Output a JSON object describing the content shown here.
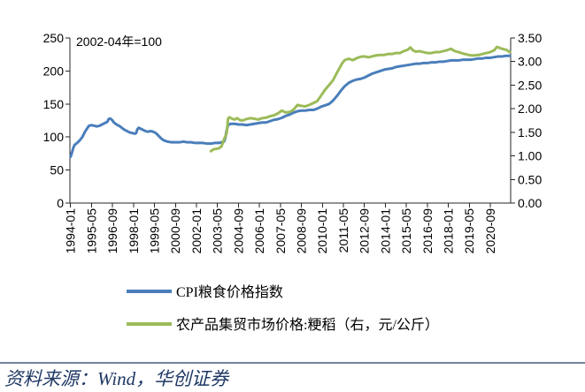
{
  "chart_data": {
    "type": "line",
    "annotation": "2002-04年=100",
    "grid": false,
    "legend_position": "bottom",
    "x_range": [
      "1994-01",
      "2021-12"
    ],
    "x_tick_labels": [
      "1994-01",
      "1995-05",
      "1996-09",
      "1998-01",
      "1999-05",
      "2000-09",
      "2002-01",
      "2003-05",
      "2004-09",
      "2006-01",
      "2007-05",
      "2008-09",
      "2010-01",
      "2011-05",
      "2012-09",
      "2014-01",
      "2015-05",
      "2016-09",
      "2018-01",
      "2019-05",
      "2020-09"
    ],
    "y_left": {
      "range": [
        0,
        250
      ],
      "tick_labels": [
        "0",
        "50",
        "100",
        "150",
        "200",
        "250"
      ]
    },
    "y_right": {
      "range": [
        0,
        3.5
      ],
      "tick_labels": [
        "0.00",
        "0.50",
        "1.00",
        "1.50",
        "2.00",
        "2.50",
        "3.00",
        "3.50"
      ]
    },
    "series": [
      {
        "name": "CPI粮食价格指数",
        "axis": "left",
        "color": "#4a7ebb",
        "x": [
          "1994-01",
          "1994-02",
          "1994-03",
          "1994-04",
          "1994-06",
          "1994-08",
          "1994-10",
          "1994-12",
          "1995-02",
          "1995-03",
          "1995-05",
          "1995-07",
          "1995-09",
          "1995-11",
          "1996-01",
          "1996-03",
          "1996-05",
          "1996-06",
          "1996-07",
          "1996-08",
          "1996-09",
          "1996-10",
          "1996-12",
          "1997-02",
          "1997-04",
          "1997-06",
          "1997-08",
          "1997-10",
          "1997-12",
          "1998-02",
          "1998-03",
          "1998-04",
          "1998-05",
          "1998-06",
          "1998-08",
          "1998-10",
          "1998-12",
          "1999-02",
          "1999-04",
          "1999-06",
          "1999-08",
          "1999-10",
          "1999-12",
          "2000-03",
          "2000-06",
          "2000-09",
          "2000-12",
          "2001-03",
          "2001-06",
          "2001-09",
          "2001-12",
          "2002-03",
          "2002-06",
          "2002-09",
          "2002-12",
          "2003-03",
          "2003-06",
          "2003-08",
          "2003-10",
          "2003-11",
          "2003-12",
          "2004-01",
          "2004-03",
          "2004-06",
          "2004-09",
          "2004-12",
          "2005-03",
          "2005-06",
          "2005-09",
          "2005-12",
          "2006-03",
          "2006-06",
          "2006-09",
          "2006-12",
          "2007-03",
          "2007-06",
          "2007-09",
          "2007-12",
          "2008-03",
          "2008-06",
          "2008-09",
          "2008-12",
          "2009-03",
          "2009-06",
          "2009-09",
          "2009-12",
          "2010-03",
          "2010-06",
          "2010-09",
          "2010-12",
          "2011-03",
          "2011-06",
          "2011-09",
          "2011-12",
          "2012-03",
          "2012-06",
          "2012-09",
          "2012-12",
          "2013-03",
          "2013-06",
          "2013-09",
          "2013-12",
          "2014-03",
          "2014-06",
          "2014-09",
          "2014-12",
          "2015-03",
          "2015-06",
          "2015-09",
          "2015-12",
          "2016-03",
          "2016-06",
          "2016-09",
          "2016-12",
          "2017-03",
          "2017-06",
          "2017-09",
          "2017-12",
          "2018-03",
          "2018-06",
          "2018-09",
          "2018-12",
          "2019-03",
          "2019-06",
          "2019-09",
          "2019-12",
          "2020-03",
          "2020-06",
          "2020-09",
          "2020-12",
          "2021-03",
          "2021-06",
          "2021-09",
          "2021-12"
        ],
        "values": [
          70,
          76,
          83,
          88,
          91,
          95,
          100,
          108,
          114,
          117,
          118,
          117,
          116,
          117,
          119,
          121,
          123,
          127,
          128,
          127,
          125,
          122,
          119,
          117,
          114,
          111,
          109,
          107,
          106,
          105,
          106,
          112,
          114,
          113,
          111,
          109,
          108,
          109,
          108,
          106,
          102,
          98,
          95,
          93,
          92,
          92,
          92,
          93,
          92,
          92,
          91,
          91,
          91,
          90,
          90,
          91,
          91,
          92,
          93,
          99,
          110,
          118,
          120,
          120,
          119,
          119,
          118,
          119,
          120,
          121,
          122,
          122,
          124,
          126,
          127,
          129,
          132,
          134,
          137,
          139,
          140,
          140,
          141,
          141,
          143,
          146,
          148,
          150,
          155,
          162,
          170,
          177,
          182,
          185,
          187,
          188,
          190,
          193,
          196,
          198,
          200,
          202,
          203,
          204,
          206,
          207,
          208,
          209,
          210,
          211,
          211,
          212,
          212,
          213,
          213,
          214,
          214,
          215,
          216,
          216,
          216,
          217,
          217,
          217,
          218,
          219,
          219,
          220,
          220,
          221,
          222,
          222,
          223,
          223
        ]
      },
      {
        "name": "农产品集贸市场价格:粳稻（右，元/公斤）",
        "axis": "right",
        "color": "#9bbb59",
        "x": [
          "2002-12",
          "2003-02",
          "2003-04",
          "2003-06",
          "2003-08",
          "2003-10",
          "2003-12",
          "2004-01",
          "2004-02",
          "2004-04",
          "2004-06",
          "2004-08",
          "2004-10",
          "2004-12",
          "2005-03",
          "2005-06",
          "2005-09",
          "2005-12",
          "2006-03",
          "2006-06",
          "2006-09",
          "2006-12",
          "2007-03",
          "2007-06",
          "2007-09",
          "2007-12",
          "2008-03",
          "2008-06",
          "2008-09",
          "2008-12",
          "2009-03",
          "2009-06",
          "2009-09",
          "2009-12",
          "2010-03",
          "2010-06",
          "2010-09",
          "2010-12",
          "2011-02",
          "2011-04",
          "2011-06",
          "2011-09",
          "2011-12",
          "2012-03",
          "2012-06",
          "2012-09",
          "2012-12",
          "2013-03",
          "2013-06",
          "2013-09",
          "2013-12",
          "2014-03",
          "2014-06",
          "2014-09",
          "2014-12",
          "2015-03",
          "2015-06",
          "2015-08",
          "2015-10",
          "2015-12",
          "2016-03",
          "2016-06",
          "2016-09",
          "2016-12",
          "2017-03",
          "2017-06",
          "2017-09",
          "2017-12",
          "2018-03",
          "2018-06",
          "2018-09",
          "2018-12",
          "2019-03",
          "2019-06",
          "2019-09",
          "2019-12",
          "2020-03",
          "2020-06",
          "2020-09",
          "2020-12",
          "2021-02",
          "2021-04",
          "2021-06",
          "2021-09",
          "2021-12"
        ],
        "values": [
          1.1,
          1.14,
          1.15,
          1.16,
          1.2,
          1.35,
          1.48,
          1.78,
          1.82,
          1.79,
          1.77,
          1.8,
          1.76,
          1.75,
          1.78,
          1.8,
          1.79,
          1.77,
          1.8,
          1.81,
          1.84,
          1.86,
          1.9,
          1.96,
          1.92,
          1.93,
          1.98,
          2.08,
          2.06,
          2.05,
          2.08,
          2.12,
          2.16,
          2.28,
          2.4,
          2.5,
          2.6,
          2.76,
          2.86,
          2.96,
          3.03,
          3.06,
          3.03,
          3.07,
          3.1,
          3.11,
          3.09,
          3.11,
          3.13,
          3.14,
          3.14,
          3.16,
          3.16,
          3.18,
          3.18,
          3.22,
          3.25,
          3.3,
          3.24,
          3.21,
          3.22,
          3.2,
          3.18,
          3.18,
          3.2,
          3.2,
          3.22,
          3.24,
          3.27,
          3.22,
          3.2,
          3.17,
          3.15,
          3.13,
          3.13,
          3.14,
          3.16,
          3.18,
          3.2,
          3.24,
          3.31,
          3.29,
          3.27,
          3.25,
          3.2
        ]
      }
    ]
  },
  "source": {
    "text": "资料来源：Wind，华创证券",
    "color": "#1f3864"
  }
}
